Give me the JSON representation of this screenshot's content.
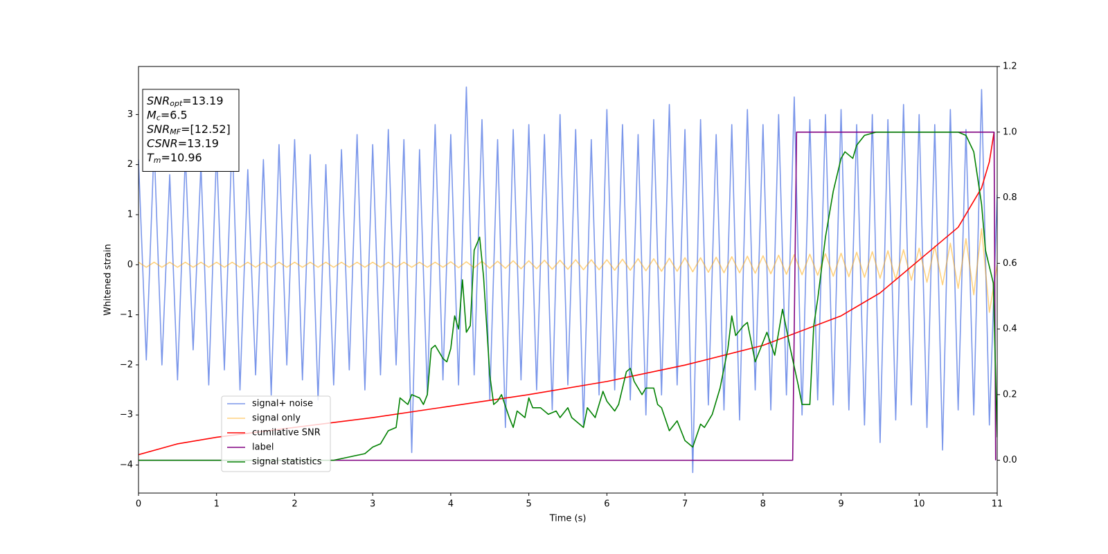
{
  "chart_data": {
    "type": "line",
    "xlabel": "Time (s)",
    "ylabel": "Whitened strain",
    "xlim": [
      0,
      11
    ],
    "xticks": [
      0,
      1,
      2,
      3,
      4,
      5,
      6,
      7,
      8,
      9,
      10,
      11
    ],
    "ylim": [
      -4.56,
      3.96
    ],
    "yticks": [
      {
        "value": -4,
        "label": "−4"
      },
      {
        "value": -3,
        "label": "−3"
      },
      {
        "value": -2,
        "label": "−2"
      },
      {
        "value": -1,
        "label": "−1"
      },
      0,
      1,
      2,
      3
    ],
    "y2lim": [
      -0.1,
      1.2
    ],
    "y2ticks": [
      {
        "value": 0,
        "label": "0.0"
      },
      {
        "value": 0.2,
        "label": "0.2"
      },
      {
        "value": 0.4,
        "label": "0.4"
      },
      {
        "value": 0.6,
        "label": "0.6"
      },
      {
        "value": 0.8,
        "label": "0.8"
      },
      {
        "value": 1,
        "label": "1.0"
      },
      {
        "value": 1.2,
        "label": "1.2"
      }
    ],
    "x": [
      0,
      0.1,
      0.2,
      0.3,
      0.4,
      0.5,
      0.6,
      0.7,
      0.8,
      0.9,
      1,
      1.1,
      1.2,
      1.3,
      1.4,
      1.5,
      1.6,
      1.7,
      1.8,
      1.9,
      2,
      2.1,
      2.2,
      2.3,
      2.4,
      2.5,
      2.6,
      2.7,
      2.8,
      2.9,
      3,
      3.1,
      3.2,
      3.3,
      3.4,
      3.5,
      3.6,
      3.7,
      3.8,
      3.9,
      4,
      4.1,
      4.2,
      4.3,
      4.4,
      4.5,
      4.6,
      4.7,
      4.8,
      4.9,
      5,
      5.1,
      5.2,
      5.3,
      5.4,
      5.5,
      5.6,
      5.7,
      5.8,
      5.9,
      6,
      6.1,
      6.2,
      6.3,
      6.4,
      6.5,
      6.6,
      6.7,
      6.8,
      6.9,
      7,
      7.1,
      7.2,
      7.3,
      7.4,
      7.5,
      7.6,
      7.7,
      7.8,
      7.9,
      8,
      8.1,
      8.2,
      8.3,
      8.4,
      8.5,
      8.6,
      8.7,
      8.8,
      8.9,
      9,
      9.1,
      9.2,
      9.3,
      9.4,
      9.5,
      9.6,
      9.7,
      9.8,
      9.9,
      10,
      10.1,
      10.2,
      10.3,
      10.4,
      10.5,
      10.6,
      10.7,
      10.8,
      10.9,
      11
    ],
    "series": [
      {
        "name": "signal+ noise",
        "color": "#4169e1",
        "alpha": 0.7,
        "values": [
          2.1,
          -1.9,
          2.4,
          -2.0,
          1.8,
          -2.3,
          2.2,
          -1.7,
          2.0,
          -2.4,
          2.3,
          -2.1,
          2.6,
          -2.5,
          1.9,
          -2.2,
          2.1,
          -2.6,
          2.4,
          -2.0,
          2.5,
          -2.3,
          2.2,
          -2.7,
          2.0,
          -2.4,
          2.3,
          -2.1,
          2.6,
          -2.5,
          2.4,
          -2.2,
          2.7,
          -2.0,
          2.5,
          -3.75,
          2.3,
          -2.6,
          2.8,
          -2.3,
          2.6,
          -2.4,
          3.55,
          -2.2,
          2.9,
          -2.7,
          2.5,
          -3.25,
          2.7,
          -2.3,
          2.8,
          -2.5,
          2.6,
          -2.9,
          3.0,
          -2.4,
          2.7,
          -3.2,
          2.5,
          -2.6,
          3.1,
          -2.5,
          2.8,
          -2.7,
          2.6,
          -3.0,
          2.9,
          -2.6,
          3.2,
          -2.4,
          2.7,
          -4.15,
          2.9,
          -2.8,
          2.6,
          -2.9,
          2.8,
          -3.1,
          3.1,
          -2.5,
          2.8,
          -2.9,
          3.0,
          -2.6,
          3.35,
          -3.0,
          2.9,
          -2.7,
          3.0,
          -2.8,
          3.1,
          -2.9,
          2.8,
          -3.2,
          3.0,
          -3.55,
          2.9,
          -3.1,
          3.2,
          -2.8,
          3.0,
          -3.25,
          2.8,
          -3.7,
          3.1,
          -2.9,
          2.7,
          -3.0,
          3.5,
          -3.2,
          1.4
        ]
      },
      {
        "name": "signal only",
        "color": "orange",
        "alpha": 0.5,
        "values": [
          0.05,
          -0.05,
          0.05,
          -0.05,
          0.05,
          -0.05,
          0.05,
          -0.05,
          0.05,
          -0.05,
          0.05,
          -0.05,
          0.05,
          -0.05,
          0.05,
          -0.05,
          0.05,
          -0.05,
          0.05,
          -0.05,
          0.05,
          -0.05,
          0.05,
          -0.05,
          0.05,
          -0.05,
          0.05,
          -0.05,
          0.05,
          -0.05,
          0.05,
          -0.05,
          0.05,
          -0.05,
          0.05,
          -0.05,
          0.05,
          -0.05,
          0.05,
          -0.05,
          0.06,
          -0.06,
          0.06,
          -0.06,
          0.07,
          -0.07,
          0.07,
          -0.07,
          0.08,
          -0.08,
          0.08,
          -0.08,
          0.09,
          -0.09,
          0.09,
          -0.09,
          0.1,
          -0.1,
          0.1,
          -0.1,
          0.1,
          -0.11,
          0.11,
          -0.11,
          0.12,
          -0.12,
          0.12,
          -0.13,
          0.13,
          -0.13,
          0.14,
          -0.14,
          0.14,
          -0.15,
          0.15,
          -0.16,
          0.16,
          -0.16,
          0.17,
          -0.17,
          0.18,
          -0.18,
          0.19,
          -0.19,
          0.2,
          -0.2,
          0.21,
          -0.21,
          0.22,
          -0.23,
          0.23,
          -0.24,
          0.25,
          -0.25,
          0.26,
          -0.27,
          0.28,
          -0.29,
          0.3,
          -0.31,
          0.33,
          -0.35,
          0.37,
          -0.4,
          0.43,
          -0.47,
          0.52,
          -0.6,
          0.72,
          -0.95,
          0.0
        ]
      },
      {
        "name": "cumilative SNR",
        "color": "red",
        "axis": "y2",
        "x": [
          0,
          0.5,
          1,
          2,
          3,
          4,
          5,
          6,
          7,
          8,
          9,
          9.5,
          10,
          10.5,
          10.8,
          10.9,
          10.96
        ],
        "values": [
          0.017,
          0.05,
          0.07,
          0.1,
          0.13,
          0.165,
          0.2,
          0.24,
          0.29,
          0.35,
          0.44,
          0.51,
          0.61,
          0.71,
          0.83,
          0.91,
          1.0
        ]
      },
      {
        "name": "label",
        "color": "purple",
        "axis": "y2",
        "x": [
          0,
          8.38,
          8.43,
          10.96,
          10.98
        ],
        "values": [
          0,
          0,
          1,
          1,
          0
        ]
      },
      {
        "name": "signal statistics",
        "color": "green",
        "axis": "y2",
        "x": [
          0,
          2.5,
          2.7,
          2.9,
          3.0,
          3.1,
          3.2,
          3.3,
          3.35,
          3.45,
          3.5,
          3.6,
          3.65,
          3.7,
          3.75,
          3.8,
          3.9,
          3.95,
          4.0,
          4.05,
          4.1,
          4.15,
          4.2,
          4.25,
          4.3,
          4.37,
          4.42,
          4.5,
          4.55,
          4.6,
          4.65,
          4.75,
          4.8,
          4.85,
          4.95,
          5.0,
          5.05,
          5.15,
          5.25,
          5.35,
          5.4,
          5.5,
          5.55,
          5.6,
          5.7,
          5.75,
          5.85,
          5.95,
          6.0,
          6.1,
          6.15,
          6.25,
          6.3,
          6.35,
          6.45,
          6.5,
          6.6,
          6.65,
          6.7,
          6.8,
          6.9,
          7.0,
          7.05,
          7.1,
          7.2,
          7.25,
          7.35,
          7.45,
          7.55,
          7.6,
          7.65,
          7.75,
          7.8,
          7.9,
          7.95,
          8.05,
          8.15,
          8.25,
          8.3,
          8.35,
          8.45,
          8.5,
          8.6,
          8.65,
          8.7,
          8.8,
          8.9,
          9.0,
          9.05,
          9.15,
          9.2,
          9.3,
          9.45,
          10.5,
          10.6,
          10.7,
          10.8,
          10.85,
          10.95,
          11.0
        ],
        "values": [
          0,
          0,
          0.01,
          0.02,
          0.04,
          0.05,
          0.09,
          0.1,
          0.19,
          0.17,
          0.2,
          0.19,
          0.17,
          0.2,
          0.34,
          0.35,
          0.31,
          0.3,
          0.34,
          0.44,
          0.4,
          0.55,
          0.39,
          0.41,
          0.64,
          0.68,
          0.56,
          0.26,
          0.17,
          0.18,
          0.2,
          0.13,
          0.1,
          0.15,
          0.13,
          0.19,
          0.16,
          0.16,
          0.14,
          0.15,
          0.13,
          0.16,
          0.13,
          0.12,
          0.1,
          0.16,
          0.13,
          0.21,
          0.18,
          0.15,
          0.17,
          0.27,
          0.28,
          0.24,
          0.2,
          0.22,
          0.22,
          0.17,
          0.16,
          0.09,
          0.12,
          0.06,
          0.05,
          0.04,
          0.11,
          0.1,
          0.14,
          0.22,
          0.34,
          0.44,
          0.38,
          0.41,
          0.42,
          0.3,
          0.33,
          0.39,
          0.32,
          0.46,
          0.4,
          0.34,
          0.23,
          0.17,
          0.17,
          0.41,
          0.49,
          0.68,
          0.82,
          0.92,
          0.94,
          0.92,
          0.96,
          0.99,
          1.0,
          1.0,
          0.99,
          0.94,
          0.78,
          0.64,
          0.54,
          0.07
        ]
      }
    ],
    "annotations": [
      {
        "symbol": "SNR",
        "subscript": "opt",
        "text": "=13.19"
      },
      {
        "symbol": "M",
        "subscript": "c",
        "text": "=6.5"
      },
      {
        "symbol": "SNR",
        "subscript": "MF",
        "text": "=[12.52]"
      },
      {
        "symbol": "CSNR",
        "text": "=13.19"
      },
      {
        "symbol": "T",
        "subscript": "m",
        "text": "=10.96"
      }
    ]
  }
}
